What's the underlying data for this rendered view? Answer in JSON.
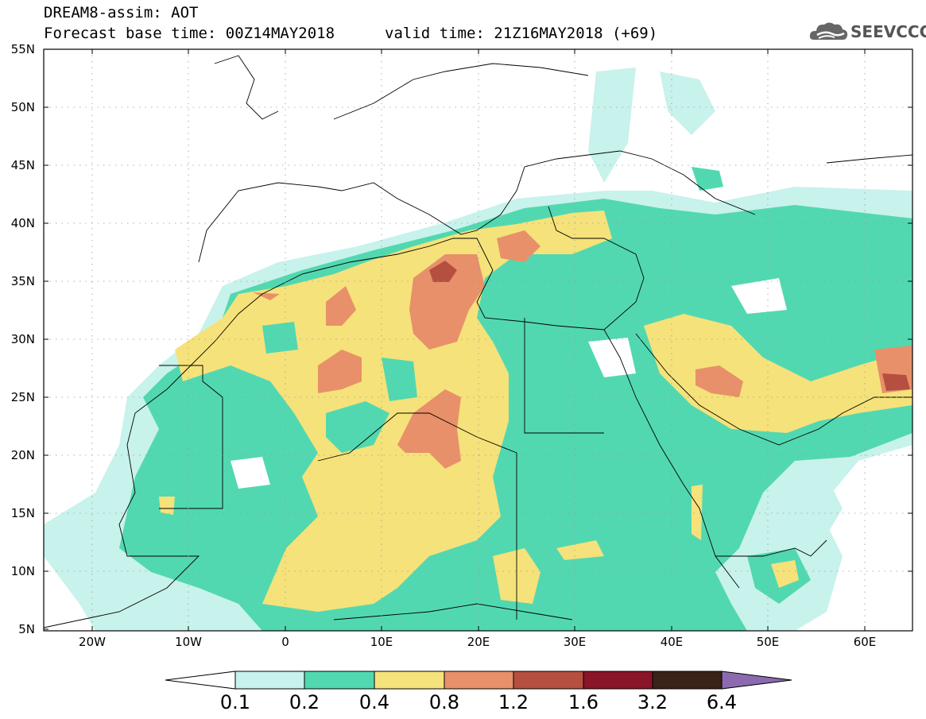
{
  "header": {
    "title": "DREAM8-assim: AOT",
    "base_time": "Forecast base time: 00Z14MAY2018",
    "valid_time": "valid time: 21Z16MAY2018 (+69)",
    "logo_text": "SEEVCCC"
  },
  "map": {
    "lat_labels": [
      "55N",
      "50N",
      "45N",
      "40N",
      "35N",
      "30N",
      "25N",
      "20N",
      "15N",
      "10N",
      "5N"
    ],
    "lon_labels": [
      "20W",
      "10W",
      "0",
      "10E",
      "20E",
      "30E",
      "40E",
      "50E",
      "60E"
    ],
    "lat_range": [
      5,
      55
    ],
    "lon_range": [
      -25,
      65
    ]
  },
  "colorbar": {
    "levels": [
      "0.1",
      "0.2",
      "0.4",
      "0.8",
      "1.2",
      "1.6",
      "3.2",
      "6.4"
    ],
    "colors": [
      "#c8f2ec",
      "#52d8b0",
      "#f5e27a",
      "#e8906a",
      "#b55040",
      "#8a1428",
      "#3a2218",
      "#8c6ab0"
    ]
  }
}
